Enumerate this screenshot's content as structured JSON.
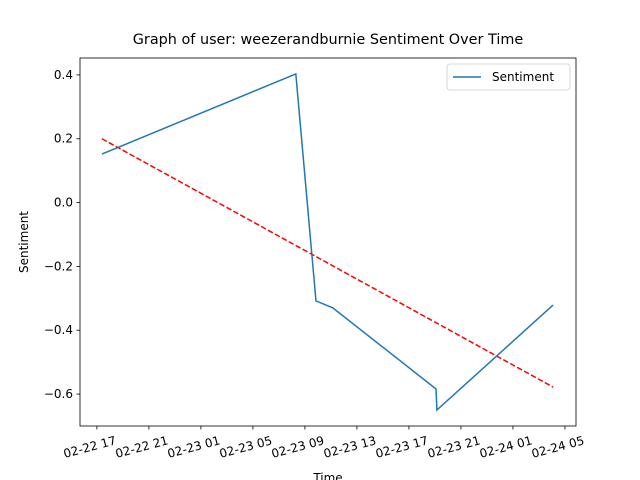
{
  "chart_data": {
    "type": "line",
    "title": "Graph of user: weezerandburnie Sentiment Over Time",
    "xlabel": "Time",
    "ylabel": "Sentiment",
    "x": [
      "02-22 17:23",
      "02-23 08:18",
      "02-23 09:51",
      "02-23 11:09",
      "02-23 19:05",
      "02-23 19:09",
      "02-24 04:05"
    ],
    "series": [
      {
        "name": "Sentiment",
        "color": "#1f77b4",
        "values": [
          0.152,
          0.403,
          -0.308,
          -0.33,
          -0.584,
          -0.65,
          -0.321
        ]
      }
    ],
    "trend": {
      "x": [
        "02-22 17:23",
        "02-24 04:05"
      ],
      "values": [
        0.2,
        -0.578
      ],
      "color": "#ff0000",
      "dashed": true
    },
    "xlim": [
      "02-22 15:42",
      "02-24 05:51"
    ],
    "xticks": [
      "02-22 17",
      "02-22 21",
      "02-23 01",
      "02-23 05",
      "02-23 09",
      "02-23 13",
      "02-23 17",
      "02-23 21",
      "02-24 01",
      "02-24 05"
    ],
    "ylim": [
      -0.7,
      0.453
    ],
    "yticks": [
      {
        "value": -0.6,
        "label": "−0.6"
      },
      {
        "value": -0.4,
        "label": "−0.4"
      },
      {
        "value": -0.2,
        "label": "−0.2"
      },
      {
        "value": 0,
        "label": "0.0"
      },
      0.2,
      0.4
    ],
    "legend": "upper right",
    "grid": false
  }
}
